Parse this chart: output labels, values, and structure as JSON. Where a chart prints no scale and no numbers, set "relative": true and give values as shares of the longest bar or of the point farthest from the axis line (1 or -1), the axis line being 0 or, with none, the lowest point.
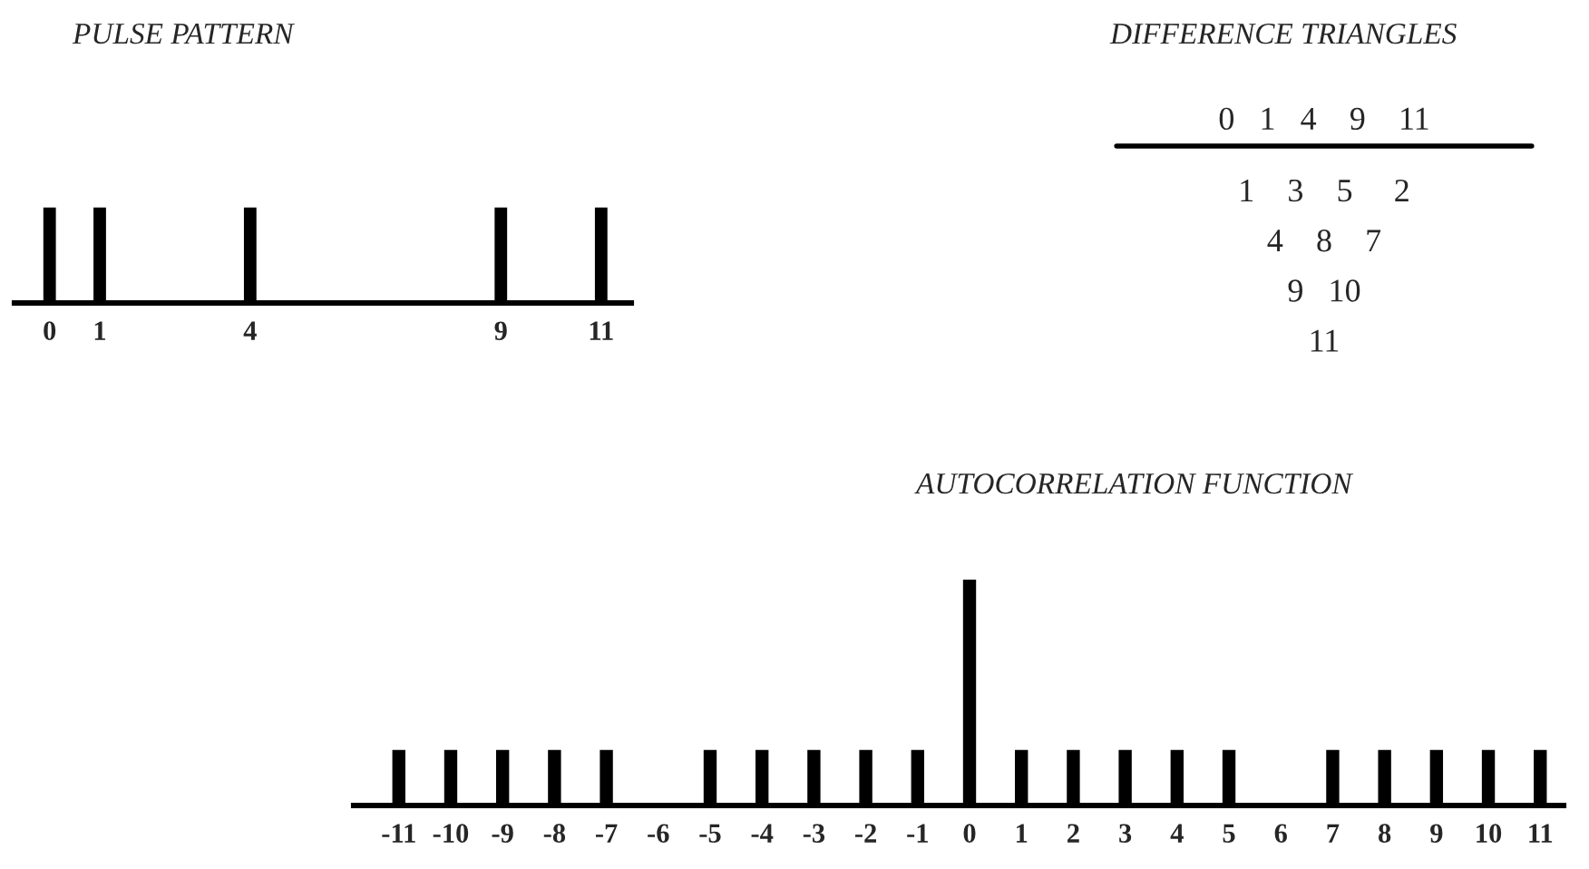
{
  "chart_data": [
    {
      "type": "bar",
      "title": "PULSE PATTERN",
      "x": [
        0,
        1,
        4,
        9,
        11
      ],
      "values": [
        1,
        1,
        1,
        1,
        1
      ],
      "relative": true,
      "xlim": [
        -0.7,
        11.6
      ],
      "xticks": [
        0,
        1,
        4,
        9,
        11
      ],
      "color": "#000000"
    },
    {
      "type": "other",
      "title": "DIFFERENCE TRIANGLES",
      "annotations": [
        "0   1   4    9    11",
        "1    3    5     2",
        "4    8    7",
        "9   10",
        "11"
      ]
    },
    {
      "type": "bar",
      "title": "AUTOCORRELATION FUNCTION",
      "categories": [
        "-11",
        "-10",
        "-9",
        "-8",
        "-7",
        "-6",
        "-5",
        "-4",
        "-3",
        "-2",
        "-1",
        "0",
        "1",
        "2",
        "3",
        "4",
        "5",
        "6",
        "7",
        "8",
        "9",
        "10",
        "11"
      ],
      "values": [
        0.25,
        0.25,
        0.25,
        0.25,
        0.25,
        null,
        0.25,
        0.25,
        0.25,
        0.25,
        0.25,
        1,
        0.25,
        0.25,
        0.25,
        0.25,
        0.25,
        null,
        0.25,
        0.25,
        0.25,
        0.25,
        0.25
      ],
      "relative": true,
      "color": "#000000"
    }
  ]
}
